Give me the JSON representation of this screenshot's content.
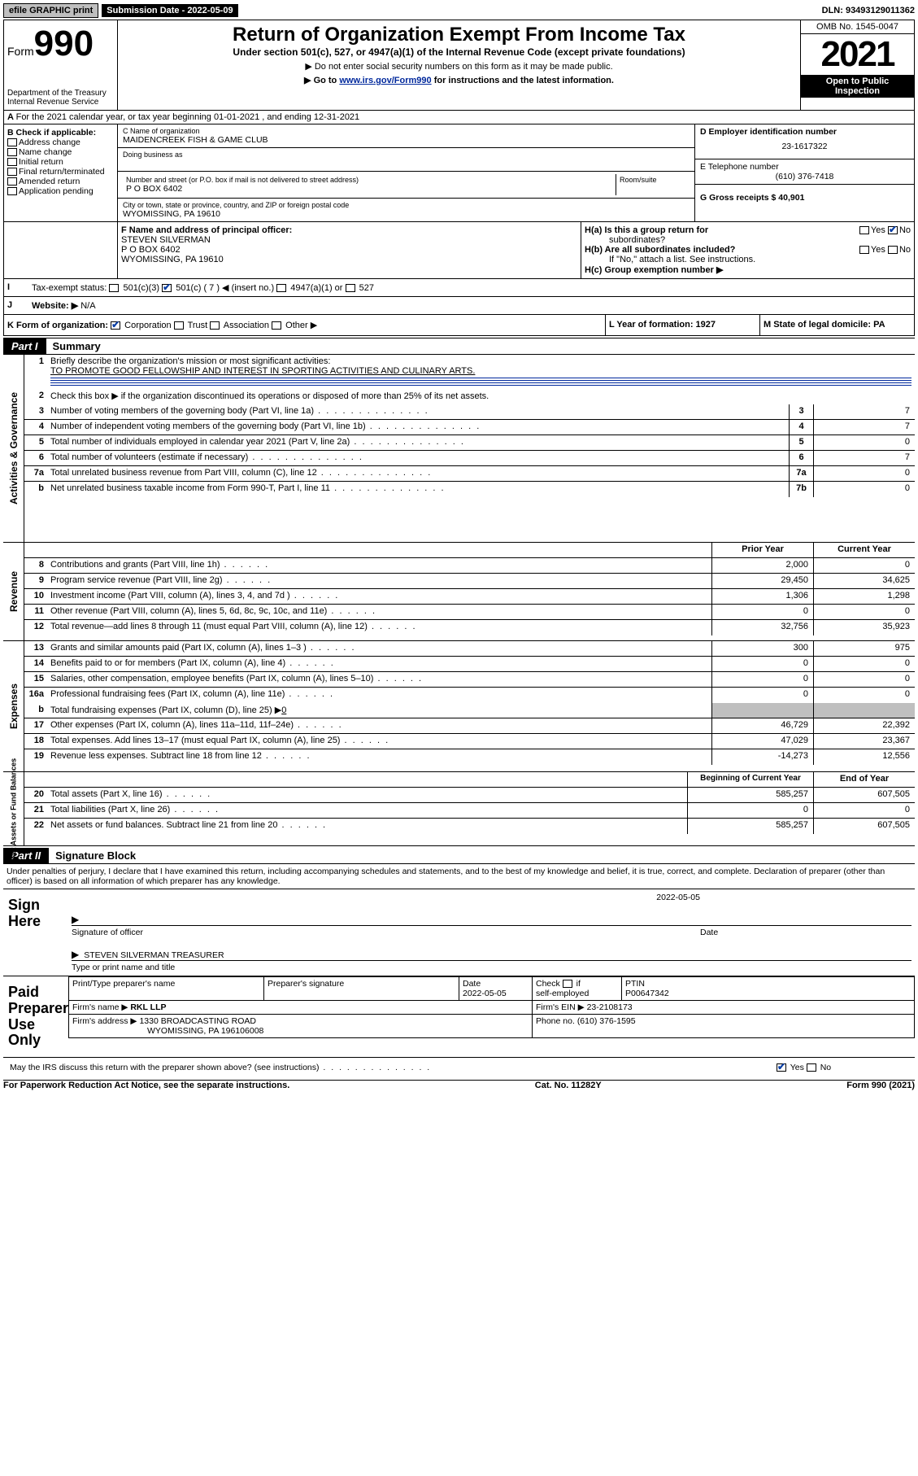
{
  "topbar": {
    "efile": "efile GRAPHIC print",
    "sub_label": "Submission Date - 2022-05-09",
    "dln": "DLN: 93493129011362"
  },
  "header": {
    "form_label": "Form",
    "form_num": "990",
    "dept": "Department of the Treasury",
    "irs": "Internal Revenue Service",
    "title": "Return of Organization Exempt From Income Tax",
    "sub": "Under section 501(c), 527, or 4947(a)(1) of the Internal Revenue Code (except private foundations)",
    "note1": "▶ Do not enter social security numbers on this form as it may be made public.",
    "note2_pre": "▶ Go to ",
    "note2_link": "www.irs.gov/Form990",
    "note2_post": " for instructions and the latest information.",
    "omb": "OMB No. 1545-0047",
    "year": "2021",
    "inspect1": "Open to Public",
    "inspect2": "Inspection"
  },
  "line_a": "For the 2021 calendar year, or tax year beginning 01-01-2021    , and ending 12-31-2021",
  "col_b": {
    "hdr": "B Check if applicable:",
    "i1": "Address change",
    "i2": "Name change",
    "i3": "Initial return",
    "i4": "Final return/terminated",
    "i5": "Amended return",
    "i6": "Application pending"
  },
  "col_c": {
    "c_lbl": "C Name of organization",
    "c_val": "MAIDENCREEK FISH & GAME CLUB",
    "dba": "Doing business as",
    "addr_lbl": "Number and street (or P.O. box if mail is not delivered to street address)",
    "room": "Room/suite",
    "addr_val": "P O BOX 6402",
    "city_lbl": "City or town, state or province, country, and ZIP or foreign postal code",
    "city_val": "WYOMISSING, PA  19610"
  },
  "col_d": {
    "d_lbl": "D Employer identification number",
    "d_val": "23-1617322",
    "e_lbl": "E Telephone number",
    "e_val": "(610) 376-7418",
    "g_lbl": "G Gross receipts $ 40,901"
  },
  "f": {
    "lbl": "F  Name and address of principal officer:",
    "l1": "STEVEN SILVERMAN",
    "l2": "P O BOX 6402",
    "l3": "WYOMISSING, PA  19610"
  },
  "h": {
    "ha": "H(a)  Is this a group return for",
    "ha2": "subordinates?",
    "hb": "H(b)  Are all subordinates included?",
    "hnote": "If \"No,\" attach a list. See instructions.",
    "hc": "H(c)  Group exemption number ▶",
    "yes": "Yes",
    "no": "No"
  },
  "i": {
    "lbl": "Tax-exempt status:",
    "o1": "501(c)(3)",
    "o2": "501(c) ( 7 ) ◀ (insert no.)",
    "o3": "4947(a)(1) or",
    "o4": "527"
  },
  "j": {
    "lbl": "Website: ▶",
    "val": "N/A"
  },
  "k": {
    "lbl": "K Form of organization:",
    "o1": "Corporation",
    "o2": "Trust",
    "o3": "Association",
    "o4": "Other ▶"
  },
  "l": {
    "lbl": "L Year of formation: 1927"
  },
  "m": {
    "lbl": "M State of legal domicile: PA"
  },
  "part1": {
    "tag": "Part I",
    "ttl": "Summary"
  },
  "s1": {
    "q": "Briefly describe the organization's mission or most significant activities:",
    "a": "TO PROMOTE GOOD FELLOWSHIP AND INTEREST IN SPORTING ACTIVITIES AND CULINARY ARTS."
  },
  "s2": "Check this box ▶      if the organization discontinued its operations or disposed of more than 25% of its net assets.",
  "rows_gov": [
    {
      "n": "3",
      "d": "Number of voting members of the governing body (Part VI, line 1a)",
      "b": "3",
      "v": "7"
    },
    {
      "n": "4",
      "d": "Number of independent voting members of the governing body (Part VI, line 1b)",
      "b": "4",
      "v": "7"
    },
    {
      "n": "5",
      "d": "Total number of individuals employed in calendar year 2021 (Part V, line 2a)",
      "b": "5",
      "v": "0"
    },
    {
      "n": "6",
      "d": "Total number of volunteers (estimate if necessary)",
      "b": "6",
      "v": "7"
    },
    {
      "n": "7a",
      "d": "Total unrelated business revenue from Part VIII, column (C), line 12",
      "b": "7a",
      "v": "0"
    },
    {
      "n": "  b",
      "d": "Net unrelated business taxable income from Form 990-T, Part I, line 11",
      "b": "7b",
      "v": "0"
    }
  ],
  "hdr2": {
    "py": "Prior Year",
    "cy": "Current Year"
  },
  "rows_rev": [
    {
      "n": "8",
      "d": "Contributions and grants (Part VIII, line 1h)",
      "p": "2,000",
      "c": "0"
    },
    {
      "n": "9",
      "d": "Program service revenue (Part VIII, line 2g)",
      "p": "29,450",
      "c": "34,625"
    },
    {
      "n": "10",
      "d": "Investment income (Part VIII, column (A), lines 3, 4, and 7d )",
      "p": "1,306",
      "c": "1,298"
    },
    {
      "n": "11",
      "d": "Other revenue (Part VIII, column (A), lines 5, 6d, 8c, 9c, 10c, and 11e)",
      "p": "0",
      "c": "0"
    },
    {
      "n": "12",
      "d": "Total revenue—add lines 8 through 11 (must equal Part VIII, column (A), line 12)",
      "p": "32,756",
      "c": "35,923"
    }
  ],
  "rows_exp": [
    {
      "n": "13",
      "d": "Grants and similar amounts paid (Part IX, column (A), lines 1–3 )",
      "p": "300",
      "c": "975"
    },
    {
      "n": "14",
      "d": "Benefits paid to or for members (Part IX, column (A), line 4)",
      "p": "0",
      "c": "0"
    },
    {
      "n": "15",
      "d": "Salaries, other compensation, employee benefits (Part IX, column (A), lines 5–10)",
      "p": "0",
      "c": "0"
    },
    {
      "n": "16a",
      "d": "Professional fundraising fees (Part IX, column (A), line 11e)",
      "p": "0",
      "c": "0"
    }
  ],
  "row_16b": {
    "n": "  b",
    "d": "Total fundraising expenses (Part IX, column (D), line 25) ▶",
    "val": "0"
  },
  "rows_exp2": [
    {
      "n": "17",
      "d": "Other expenses (Part IX, column (A), lines 11a–11d, 11f–24e)",
      "p": "46,729",
      "c": "22,392"
    },
    {
      "n": "18",
      "d": "Total expenses. Add lines 13–17 (must equal Part IX, column (A), line 25)",
      "p": "47,029",
      "c": "23,367"
    },
    {
      "n": "19",
      "d": "Revenue less expenses. Subtract line 18 from line 12",
      "p": "-14,273",
      "c": "12,556"
    }
  ],
  "hdr3": {
    "bcy": "Beginning of Current Year",
    "eoy": "End of Year"
  },
  "rows_na": [
    {
      "n": "20",
      "d": "Total assets (Part X, line 16)",
      "p": "585,257",
      "c": "607,505"
    },
    {
      "n": "21",
      "d": "Total liabilities (Part X, line 26)",
      "p": "0",
      "c": "0"
    },
    {
      "n": "22",
      "d": "Net assets or fund balances. Subtract line 21 from line 20",
      "p": "585,257",
      "c": "607,505"
    }
  ],
  "vtabs": {
    "gov": "Activities & Governance",
    "rev": "Revenue",
    "exp": "Expenses",
    "na": "Net Assets or\nFund Balances"
  },
  "part2": {
    "tag": "Part II",
    "ttl": "Signature Block"
  },
  "penalty": "Under penalties of perjury, I declare that I have examined this return, including accompanying schedules and statements, and to the best of my knowledge and belief, it is true, correct, and complete. Declaration of preparer (other than officer) is based on all information of which preparer has any knowledge.",
  "sign": {
    "left": "Sign Here",
    "date": "2022-05-05",
    "sig_lbl": "Signature of officer",
    "date_lbl": "Date",
    "name": "STEVEN SILVERMAN  TREASURER",
    "name_lbl": "Type or print name and title"
  },
  "paid": {
    "left": "Paid Preparer Use Only",
    "h1": "Print/Type preparer's name",
    "h2": "Preparer's signature",
    "h3": "Date",
    "h3v": "2022-05-05",
    "h4a": "Check",
    "h4b": "if",
    "h4c": "self-employed",
    "h5": "PTIN",
    "h5v": "P00647342",
    "f1a": "Firm's name   ▶",
    "f1v": "RKL LLP",
    "f2a": "Firm's EIN ▶",
    "f2v": "23-2108173",
    "f3a": "Firm's address ▶",
    "f3v1": "1330 BROADCASTING ROAD",
    "f3v2": "WYOMISSING, PA  196106008",
    "f4a": "Phone no.",
    "f4v": "(610) 376-1595"
  },
  "may": {
    "q": "May the IRS discuss this return with the preparer shown above? (see instructions)",
    "yes": "Yes",
    "no": "No"
  },
  "foot": {
    "l": "For Paperwork Reduction Act Notice, see the separate instructions.",
    "m": "Cat. No. 11282Y",
    "r": "Form 990 (2021)"
  }
}
